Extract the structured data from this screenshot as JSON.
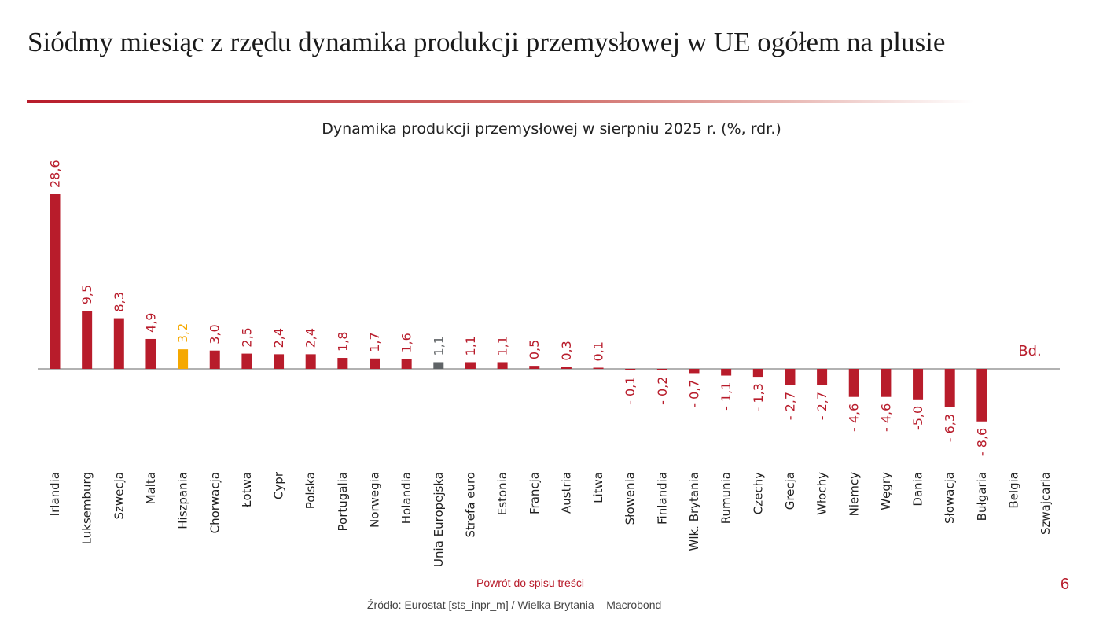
{
  "slide": {
    "title": "Siódmy miesiąc z rzędu dynamika produkcji przemysłowej w UE ogółem na plusie",
    "back_link": "Powrót do spisu treści",
    "page_number": "6",
    "source": "Źródło: Eurostat [sts_inpr_m] / Wielka Brytania – Macrobond"
  },
  "chart_data": {
    "type": "bar",
    "title": "Dynamika produkcji przemysłowej w sierpniu 2025 r. (%, rdr.)",
    "categories": [
      "Irlandia",
      "Luksemburg",
      "Szwecja",
      "Malta",
      "Hiszpania",
      "Chorwacja",
      "Łotwa",
      "Cypr",
      "Polska",
      "Portugalia",
      "Norwegia",
      "Holandia",
      "Unia Europejska",
      "Strefa euro",
      "Estonia",
      "Francja",
      "Austria",
      "Litwa",
      "Słowenia",
      "Finlandia",
      "Wlk. Brytania",
      "Rumunia",
      "Czechy",
      "Grecja",
      "Włochy",
      "Niemcy",
      "Węgry",
      "Dania",
      "Słowacja",
      "Bułgaria",
      "Belgia",
      "Szwajcaria"
    ],
    "values": [
      28.6,
      9.5,
      8.3,
      4.9,
      3.2,
      3.0,
      2.5,
      2.4,
      2.4,
      1.8,
      1.7,
      1.6,
      1.1,
      1.1,
      1.1,
      0.5,
      0.3,
      0.1,
      -0.1,
      -0.2,
      -0.7,
      -1.1,
      -1.3,
      -2.7,
      -2.7,
      -4.6,
      -4.6,
      -5.0,
      -6.3,
      -8.6,
      null,
      null
    ],
    "data_labels": [
      "28,6",
      "9,5",
      "8,3",
      "4,9",
      "3,2",
      "3,0",
      "2,5",
      "2,4",
      "2,4",
      "1,8",
      "1,7",
      "1,6",
      "1,1",
      "1,1",
      "1,1",
      "0,5",
      "0,3",
      "0,1",
      "- 0,1",
      "- 0,2",
      "- 0,7",
      "- 1,1",
      "- 1,3",
      "- 2,7",
      "- 2,7",
      "- 4,6",
      "- 4,6",
      "-5,0",
      "- 6,3",
      "- 8,6",
      "",
      ""
    ],
    "missing_label": "Bd.",
    "highlight": {
      "Hiszpania": "#F5A800",
      "Unia Europejska": "#5F6366"
    },
    "default_color": "#B81C2B",
    "ylim": [
      -8.6,
      28.6
    ],
    "grid": false,
    "legend": "none"
  }
}
